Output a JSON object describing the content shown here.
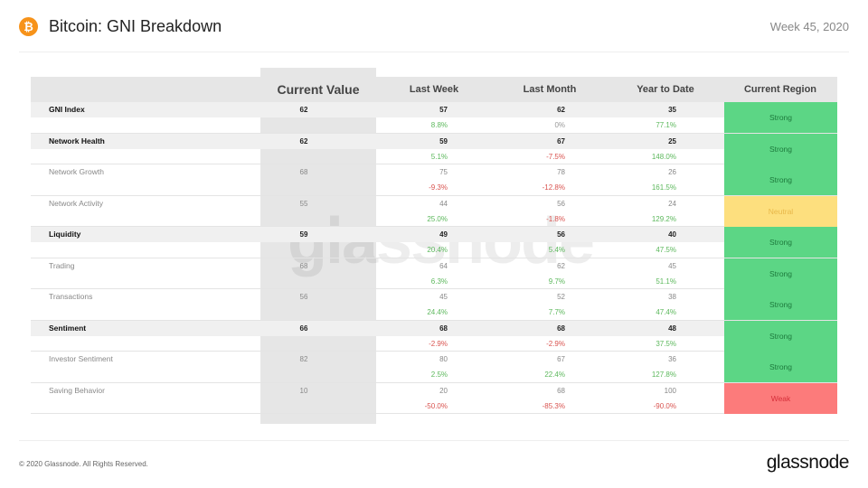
{
  "header": {
    "title": "Bitcoin: GNI Breakdown",
    "week": "Week 45, 2020",
    "logo_icon": "bitcoin-icon"
  },
  "table": {
    "columns": [
      "",
      "Current Value",
      "Last Week",
      "Last Month",
      "Year to Date",
      "Current Region"
    ],
    "rows": [
      {
        "name": "GNI Index",
        "major": true,
        "current": "62",
        "last_week": "57",
        "last_week_chg": "8.8%",
        "last_month": "62",
        "last_month_chg": "0%",
        "ytd": "35",
        "ytd_chg": "77.1%",
        "region": "Strong"
      },
      {
        "name": "Network Health",
        "major": true,
        "current": "62",
        "last_week": "59",
        "last_week_chg": "5.1%",
        "last_month": "67",
        "last_month_chg": "-7.5%",
        "ytd": "25",
        "ytd_chg": "148.0%",
        "region": "Strong"
      },
      {
        "name": "Network Growth",
        "major": false,
        "current": "68",
        "last_week": "75",
        "last_week_chg": "-9.3%",
        "last_month": "78",
        "last_month_chg": "-12.8%",
        "ytd": "26",
        "ytd_chg": "161.5%",
        "region": "Strong"
      },
      {
        "name": "Network Activity",
        "major": false,
        "current": "55",
        "last_week": "44",
        "last_week_chg": "25.0%",
        "last_month": "56",
        "last_month_chg": "-1.8%",
        "ytd": "24",
        "ytd_chg": "129.2%",
        "region": "Neutral"
      },
      {
        "name": "Liquidity",
        "major": true,
        "current": "59",
        "last_week": "49",
        "last_week_chg": "20.4%",
        "last_month": "56",
        "last_month_chg": "5.4%",
        "ytd": "40",
        "ytd_chg": "47.5%",
        "region": "Strong"
      },
      {
        "name": "Trading",
        "major": false,
        "current": "68",
        "last_week": "64",
        "last_week_chg": "6.3%",
        "last_month": "62",
        "last_month_chg": "9.7%",
        "ytd": "45",
        "ytd_chg": "51.1%",
        "region": "Strong"
      },
      {
        "name": "Transactions",
        "major": false,
        "current": "56",
        "last_week": "45",
        "last_week_chg": "24.4%",
        "last_month": "52",
        "last_month_chg": "7.7%",
        "ytd": "38",
        "ytd_chg": "47.4%",
        "region": "Strong"
      },
      {
        "name": "Sentiment",
        "major": true,
        "current": "66",
        "last_week": "68",
        "last_week_chg": "-2.9%",
        "last_month": "68",
        "last_month_chg": "-2.9%",
        "ytd": "48",
        "ytd_chg": "37.5%",
        "region": "Strong"
      },
      {
        "name": "Investor Sentiment",
        "major": false,
        "current": "82",
        "last_week": "80",
        "last_week_chg": "2.5%",
        "last_month": "67",
        "last_month_chg": "22.4%",
        "ytd": "36",
        "ytd_chg": "127.8%",
        "region": "Strong"
      },
      {
        "name": "Saving Behavior",
        "major": false,
        "current": "10",
        "last_week": "20",
        "last_week_chg": "-50.0%",
        "last_month": "68",
        "last_month_chg": "-85.3%",
        "ytd": "100",
        "ytd_chg": "-90.0%",
        "region": "Weak"
      }
    ]
  },
  "colors": {
    "strong": "#5cd685",
    "neutral": "#fddf7e",
    "weak": "#fc7b7b",
    "positive": "#5cb85c",
    "negative": "#d9534f"
  },
  "watermark": "glassnode",
  "footer": {
    "copyright": "© 2020 Glassnode. All Rights Reserved.",
    "brand": "glassnode"
  }
}
